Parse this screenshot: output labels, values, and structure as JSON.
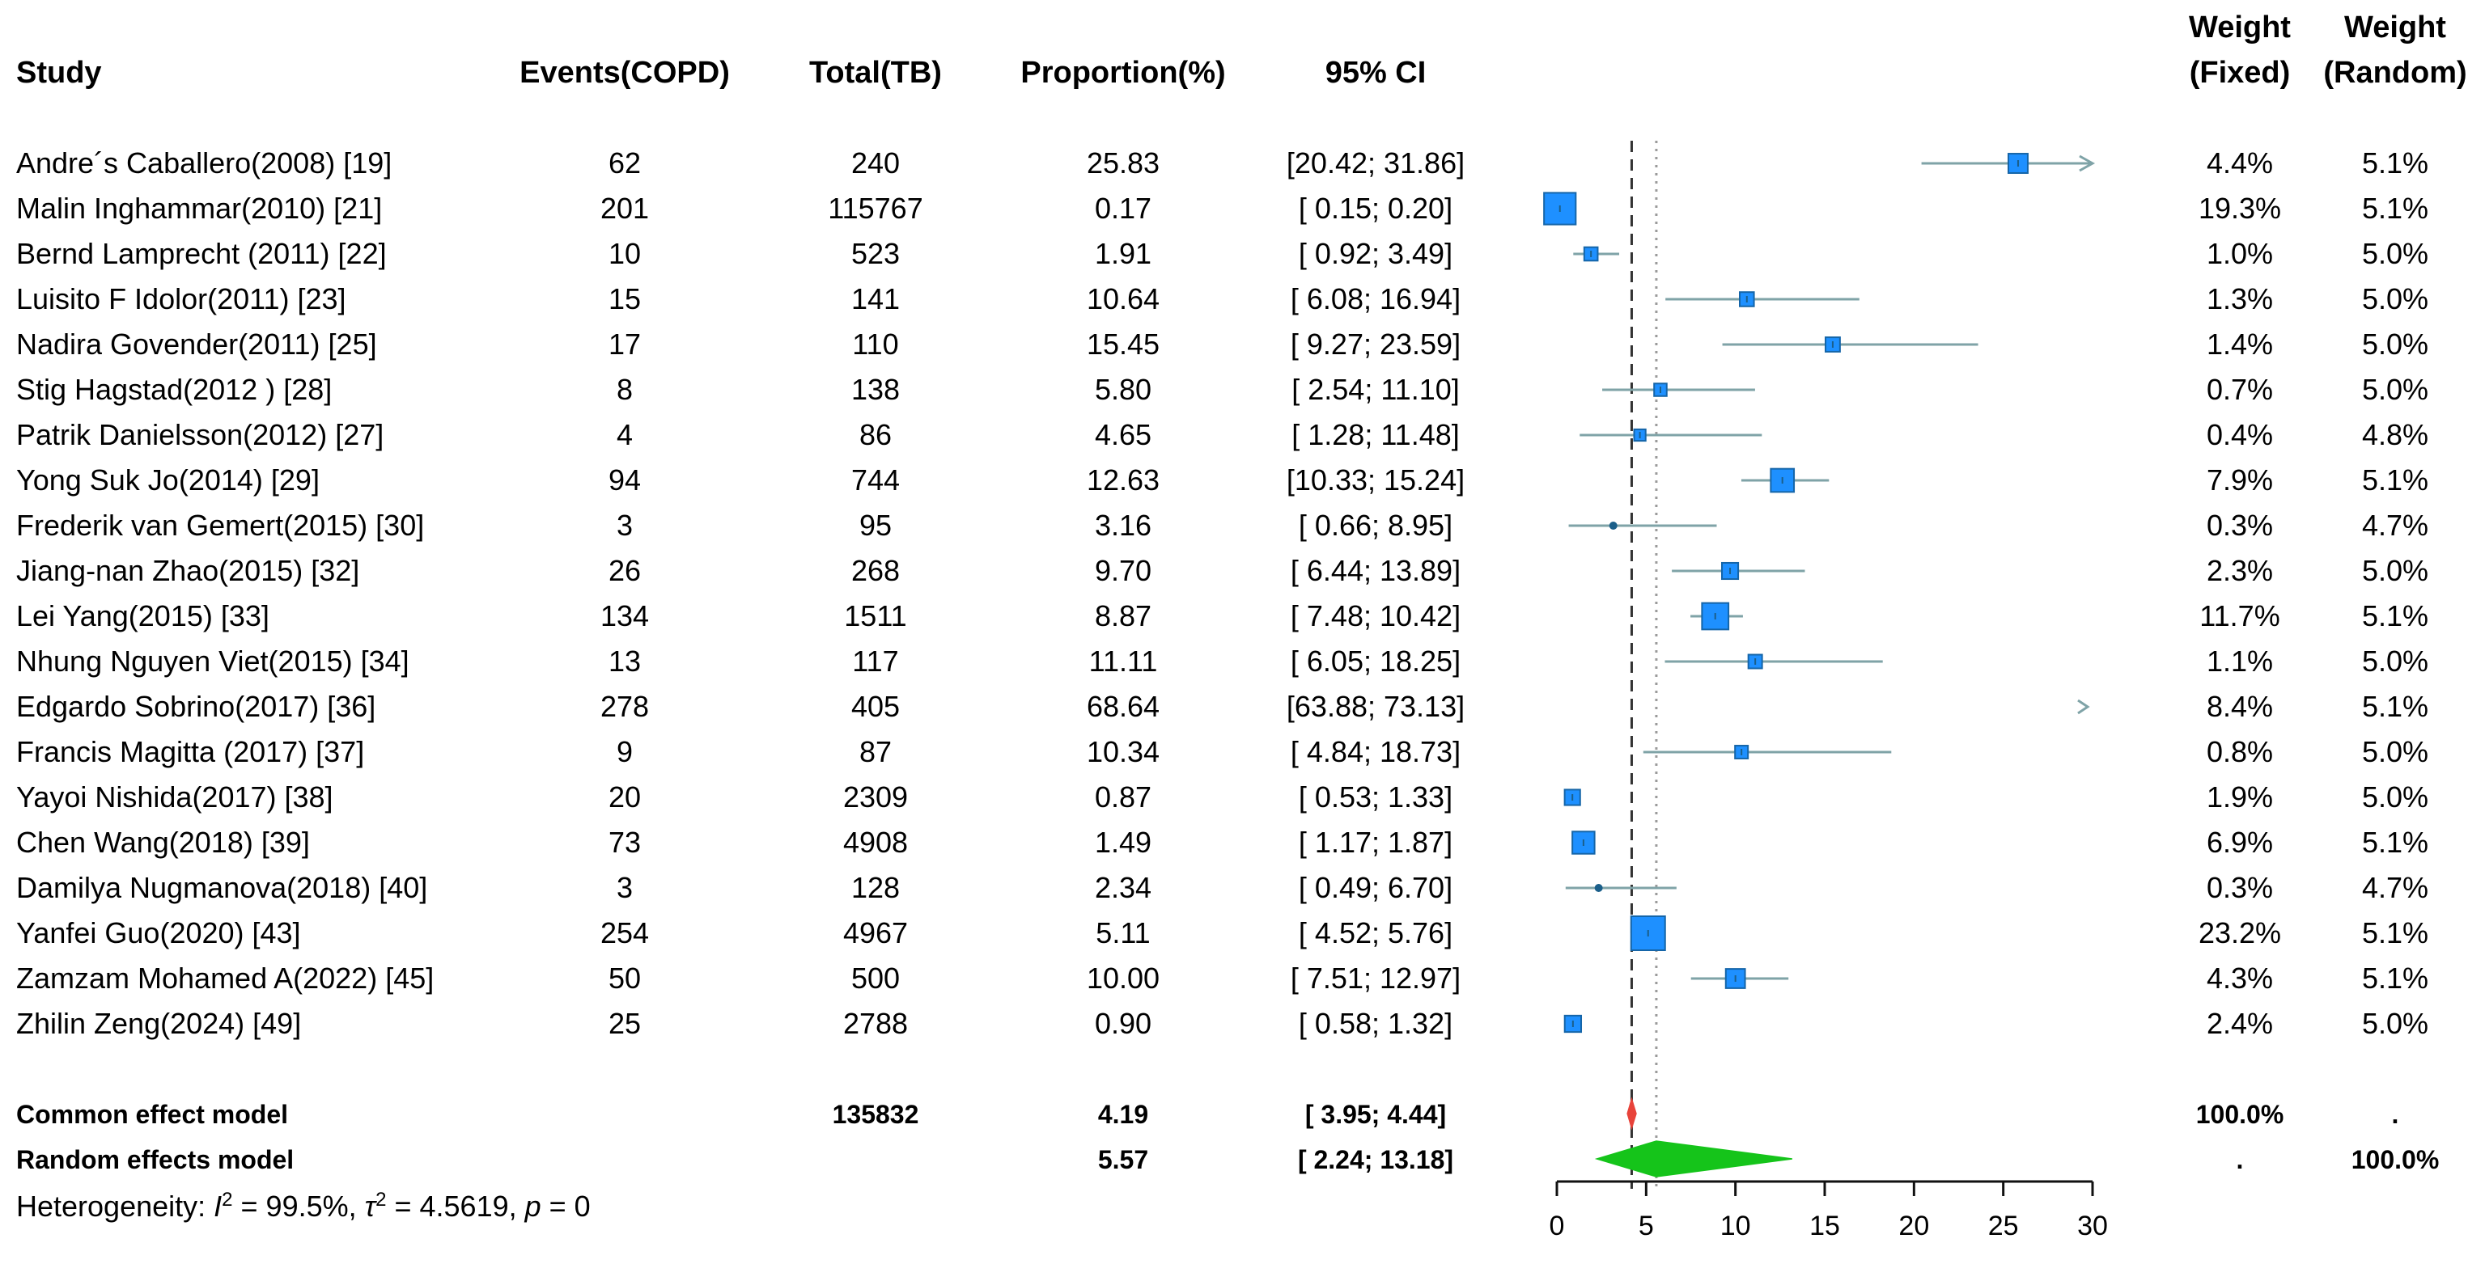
{
  "chart_data": {
    "type": "forest",
    "columns": {
      "study": "Study",
      "events": "Events(COPD)",
      "total": "Total(TB)",
      "proportion": "Proportion(%)",
      "ci": "95% CI",
      "weight_fixed": [
        "Weight",
        "(Fixed)"
      ],
      "weight_random": [
        "Weight",
        "(Random)"
      ]
    },
    "studies": [
      {
        "study": "Andre´s Caballero(2008) [19]",
        "events": "62",
        "total": "240",
        "prop": 25.83,
        "prop_label": "25.83",
        "lo": 20.42,
        "hi": 31.86,
        "ci_label": "[20.42; 31.86]",
        "w_fixed": "4.4%",
        "w_random": "5.1%"
      },
      {
        "study": "Malin Inghammar(2010) [21]",
        "events": "201",
        "total": "115767",
        "prop": 0.17,
        "prop_label": "0.17",
        "lo": 0.15,
        "hi": 0.2,
        "ci_label": "[ 0.15;  0.20]",
        "w_fixed": "19.3%",
        "w_random": "5.1%"
      },
      {
        "study": "Bernd Lamprecht (2011) [22]",
        "events": "10",
        "total": "523",
        "prop": 1.91,
        "prop_label": "1.91",
        "lo": 0.92,
        "hi": 3.49,
        "ci_label": "[ 0.92;  3.49]",
        "w_fixed": "1.0%",
        "w_random": "5.0%"
      },
      {
        "study": "Luisito F Idolor(2011) [23]",
        "events": "15",
        "total": "141",
        "prop": 10.64,
        "prop_label": "10.64",
        "lo": 6.08,
        "hi": 16.94,
        "ci_label": "[ 6.08; 16.94]",
        "w_fixed": "1.3%",
        "w_random": "5.0%"
      },
      {
        "study": "Nadira Govender(2011) [25]",
        "events": "17",
        "total": "110",
        "prop": 15.45,
        "prop_label": "15.45",
        "lo": 9.27,
        "hi": 23.59,
        "ci_label": "[ 9.27; 23.59]",
        "w_fixed": "1.4%",
        "w_random": "5.0%"
      },
      {
        "study": "Stig Hagstad(2012 ) [28]",
        "events": "8",
        "total": "138",
        "prop": 5.8,
        "prop_label": "5.80",
        "lo": 2.54,
        "hi": 11.1,
        "ci_label": "[ 2.54; 11.10]",
        "w_fixed": "0.7%",
        "w_random": "5.0%"
      },
      {
        "study": "Patrik Danielsson(2012) [27]",
        "events": "4",
        "total": "86",
        "prop": 4.65,
        "prop_label": "4.65",
        "lo": 1.28,
        "hi": 11.48,
        "ci_label": "[ 1.28; 11.48]",
        "w_fixed": "0.4%",
        "w_random": "4.8%"
      },
      {
        "study": "Yong Suk Jo(2014) [29]",
        "events": "94",
        "total": "744",
        "prop": 12.63,
        "prop_label": "12.63",
        "lo": 10.33,
        "hi": 15.24,
        "ci_label": "[10.33; 15.24]",
        "w_fixed": "7.9%",
        "w_random": "5.1%"
      },
      {
        "study": "Frederik van Gemert(2015) [30]",
        "events": "3",
        "total": "95",
        "prop": 3.16,
        "prop_label": "3.16",
        "lo": 0.66,
        "hi": 8.95,
        "ci_label": "[ 0.66;  8.95]",
        "w_fixed": "0.3%",
        "w_random": "4.7%"
      },
      {
        "study": "Jiang-nan Zhao(2015) [32]",
        "events": "26",
        "total": "268",
        "prop": 9.7,
        "prop_label": "9.70",
        "lo": 6.44,
        "hi": 13.89,
        "ci_label": "[ 6.44; 13.89]",
        "w_fixed": "2.3%",
        "w_random": "5.0%"
      },
      {
        "study": "Lei Yang(2015) [33]",
        "events": "134",
        "total": "1511",
        "prop": 8.87,
        "prop_label": "8.87",
        "lo": 7.48,
        "hi": 10.42,
        "ci_label": "[ 7.48; 10.42]",
        "w_fixed": "11.7%",
        "w_random": "5.1%"
      },
      {
        "study": "Nhung Nguyen Viet(2015) [34]",
        "events": "13",
        "total": "117",
        "prop": 11.11,
        "prop_label": "11.11",
        "lo": 6.05,
        "hi": 18.25,
        "ci_label": "[ 6.05; 18.25]",
        "w_fixed": "1.1%",
        "w_random": "5.0%"
      },
      {
        "study": "Edgardo Sobrino(2017) [36]",
        "events": "278",
        "total": "405",
        "prop": 68.64,
        "prop_label": "68.64",
        "lo": 63.88,
        "hi": 73.13,
        "ci_label": "[63.88; 73.13]",
        "w_fixed": "8.4%",
        "w_random": "5.1%"
      },
      {
        "study": "Francis Magitta (2017) [37]",
        "events": "9",
        "total": "87",
        "prop": 10.34,
        "prop_label": "10.34",
        "lo": 4.84,
        "hi": 18.73,
        "ci_label": "[ 4.84; 18.73]",
        "w_fixed": "0.8%",
        "w_random": "5.0%"
      },
      {
        "study": "Yayoi Nishida(2017) [38]",
        "events": "20",
        "total": "2309",
        "prop": 0.87,
        "prop_label": "0.87",
        "lo": 0.53,
        "hi": 1.33,
        "ci_label": "[ 0.53;  1.33]",
        "w_fixed": "1.9%",
        "w_random": "5.0%"
      },
      {
        "study": "Chen Wang(2018) [39]",
        "events": "73",
        "total": "4908",
        "prop": 1.49,
        "prop_label": "1.49",
        "lo": 1.17,
        "hi": 1.87,
        "ci_label": "[ 1.17;  1.87]",
        "w_fixed": "6.9%",
        "w_random": "5.1%"
      },
      {
        "study": "Damilya Nugmanova(2018) [40]",
        "events": "3",
        "total": "128",
        "prop": 2.34,
        "prop_label": "2.34",
        "lo": 0.49,
        "hi": 6.7,
        "ci_label": "[ 0.49;  6.70]",
        "w_fixed": "0.3%",
        "w_random": "4.7%"
      },
      {
        "study": "Yanfei Guo(2020) [43]",
        "events": "254",
        "total": "4967",
        "prop": 5.11,
        "prop_label": "5.11",
        "lo": 4.52,
        "hi": 5.76,
        "ci_label": "[ 4.52;  5.76]",
        "w_fixed": "23.2%",
        "w_random": "5.1%"
      },
      {
        "study": "Zamzam Mohamed A(2022) [45]",
        "events": "50",
        "total": "500",
        "prop": 10.0,
        "prop_label": "10.00",
        "lo": 7.51,
        "hi": 12.97,
        "ci_label": "[ 7.51; 12.97]",
        "w_fixed": "4.3%",
        "w_random": "5.1%"
      },
      {
        "study": "Zhilin Zeng(2024) [49]",
        "events": "25",
        "total": "2788",
        "prop": 0.9,
        "prop_label": "0.90",
        "lo": 0.58,
        "hi": 1.32,
        "ci_label": "[ 0.58;  1.32]",
        "w_fixed": "2.4%",
        "w_random": "5.0%"
      }
    ],
    "models": [
      {
        "name": "Common effect model",
        "total": "135832",
        "prop": 4.19,
        "prop_label": "4.19",
        "lo": 3.95,
        "hi": 4.44,
        "ci_label": "[ 3.95;  4.44]",
        "w_fixed": "100.0%",
        "w_random": ".",
        "color": "#e8433a"
      },
      {
        "name": "Random effects model",
        "total": "",
        "prop": 5.57,
        "prop_label": "5.57",
        "lo": 2.24,
        "hi": 13.18,
        "ci_label": "[ 2.24; 13.18]",
        "w_fixed": ".",
        "w_random": "100.0%",
        "color": "#15c41a"
      }
    ],
    "heterogeneity": {
      "prefix": "Heterogeneity: ",
      "I2": "99.5%",
      "tau2": "4.5619",
      "p": "0"
    },
    "axis": {
      "xlim": [
        0,
        30
      ],
      "ticks": [
        0,
        5,
        10,
        15,
        20,
        25,
        30
      ]
    },
    "reference_lines": {
      "common": 4.19,
      "random": 5.57
    },
    "colors": {
      "box": "#1e90ff",
      "box_stroke": "#1565a8",
      "ci_line": "#7fa3a7",
      "dot": "#1b5f8a",
      "random_ref": "#9a9a9a",
      "common_ref": "#333333"
    }
  }
}
